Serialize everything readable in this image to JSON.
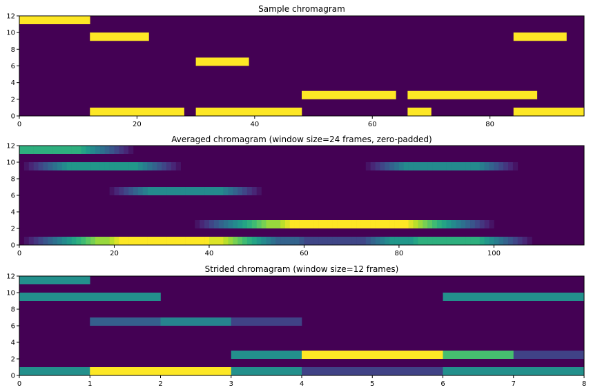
{
  "colors": {
    "background": "#440154",
    "axis": "#000000",
    "colormap": [
      "#440154",
      "#482878",
      "#3e4989",
      "#31688e",
      "#26828e",
      "#1f9e89",
      "#35b779",
      "#6ece58",
      "#b5de2b",
      "#fde725"
    ]
  },
  "chart_data": [
    {
      "type": "heatmap",
      "title": "Sample chromagram",
      "xlim": [
        0,
        96
      ],
      "ylim": [
        0,
        12
      ],
      "xticks": [
        0,
        20,
        40,
        60,
        80
      ],
      "yticks": [
        0,
        2,
        4,
        6,
        8,
        10,
        12
      ],
      "cells": [
        {
          "x0": 0,
          "x1": 12,
          "y0": 11,
          "y1": 12,
          "v": 1
        },
        {
          "x0": 12,
          "x1": 22,
          "y0": 9,
          "y1": 10,
          "v": 1
        },
        {
          "x0": 84,
          "x1": 93,
          "y0": 9,
          "y1": 10,
          "v": 1
        },
        {
          "x0": 30,
          "x1": 39,
          "y0": 6,
          "y1": 7,
          "v": 1
        },
        {
          "x0": 48,
          "x1": 64,
          "y0": 2,
          "y1": 3,
          "v": 1
        },
        {
          "x0": 66,
          "x1": 88,
          "y0": 2,
          "y1": 3,
          "v": 1
        },
        {
          "x0": 12,
          "x1": 28,
          "y0": 0,
          "y1": 1,
          "v": 1
        },
        {
          "x0": 30,
          "x1": 48,
          "y0": 0,
          "y1": 1,
          "v": 1
        },
        {
          "x0": 66,
          "x1": 70,
          "y0": 0,
          "y1": 1,
          "v": 1
        },
        {
          "x0": 84,
          "x1": 96,
          "y0": 0,
          "y1": 1,
          "v": 1
        }
      ]
    },
    {
      "type": "heatmap",
      "title": "Averaged chromagram (window size=24 frames, zero-padded)",
      "xlim": [
        0,
        119
      ],
      "ylim": [
        0,
        12
      ],
      "xticks": [
        0,
        20,
        40,
        60,
        80,
        100
      ],
      "yticks": [
        0,
        2,
        4,
        6,
        8,
        10,
        12
      ],
      "intervals": [
        {
          "row": 11,
          "start": 0,
          "end": 12
        },
        {
          "row": 9,
          "start": 12,
          "end": 22
        },
        {
          "row": 9,
          "start": 84,
          "end": 93
        },
        {
          "row": 6,
          "start": 30,
          "end": 39
        },
        {
          "row": 2,
          "start": 48,
          "end": 64
        },
        {
          "row": 2,
          "start": 66,
          "end": 88
        },
        {
          "row": 0,
          "start": 12,
          "end": 28
        },
        {
          "row": 0,
          "start": 30,
          "end": 48
        },
        {
          "row": 0,
          "start": 66,
          "end": 70
        },
        {
          "row": 0,
          "start": 84,
          "end": 96
        }
      ],
      "window": 24,
      "vmax": 0.79
    },
    {
      "type": "heatmap",
      "title": "Strided chromagram (window size=12 frames)",
      "xlim": [
        0,
        8
      ],
      "ylim": [
        0,
        12
      ],
      "xticks": [
        0,
        1,
        2,
        3,
        4,
        5,
        6,
        7,
        8
      ],
      "yticks": [
        0,
        2,
        4,
        6,
        8,
        10,
        12
      ],
      "cells": [
        {
          "x0": 0,
          "x1": 1,
          "y0": 11,
          "y1": 12,
          "v": 0.5
        },
        {
          "x0": 0,
          "x1": 2,
          "y0": 9,
          "y1": 10,
          "v": 0.5
        },
        {
          "x0": 6,
          "x1": 8,
          "y0": 9,
          "y1": 10,
          "v": 0.5
        },
        {
          "x0": 1,
          "x1": 2,
          "y0": 6,
          "y1": 7,
          "v": 0.3
        },
        {
          "x0": 2,
          "x1": 3,
          "y0": 6,
          "y1": 7,
          "v": 0.45
        },
        {
          "x0": 3,
          "x1": 4,
          "y0": 6,
          "y1": 7,
          "v": 0.2
        },
        {
          "x0": 3,
          "x1": 4,
          "y0": 2,
          "y1": 3,
          "v": 0.5
        },
        {
          "x0": 4,
          "x1": 6,
          "y0": 2,
          "y1": 3,
          "v": 1
        },
        {
          "x0": 6,
          "x1": 7,
          "y0": 2,
          "y1": 3,
          "v": 0.7
        },
        {
          "x0": 7,
          "x1": 8,
          "y0": 2,
          "y1": 3,
          "v": 0.2
        },
        {
          "x0": 0,
          "x1": 1,
          "y0": 0,
          "y1": 1,
          "v": 0.5
        },
        {
          "x0": 1,
          "x1": 3,
          "y0": 0,
          "y1": 1,
          "v": 1
        },
        {
          "x0": 3,
          "x1": 4,
          "y0": 0,
          "y1": 1,
          "v": 0.5
        },
        {
          "x0": 4,
          "x1": 6,
          "y0": 0,
          "y1": 1,
          "v": 0.2
        },
        {
          "x0": 6,
          "x1": 8,
          "y0": 0,
          "y1": 1,
          "v": 0.5
        }
      ]
    }
  ]
}
